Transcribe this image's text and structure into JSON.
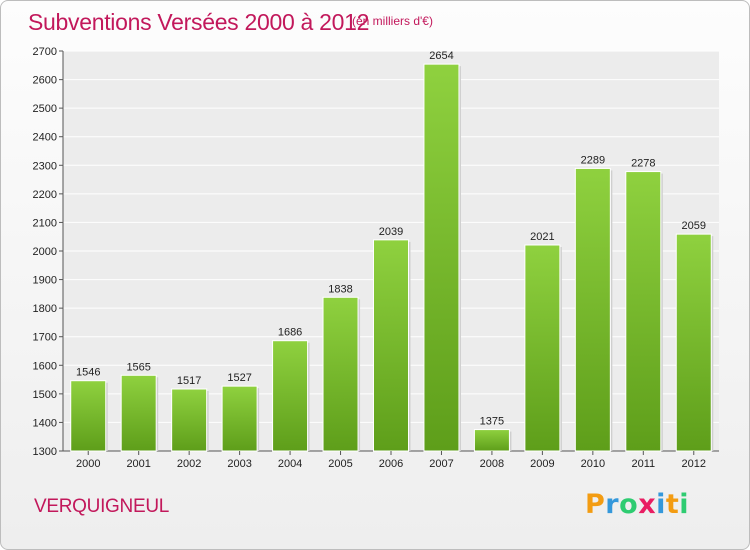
{
  "header": {
    "title": "Subventions Versées 2000 à 2012",
    "unit": "(en milliers d'€)"
  },
  "footer": {
    "commune": "VERQUIGNEUL",
    "logo_letters": [
      {
        "char": "P",
        "color": "#f39c12"
      },
      {
        "char": "r",
        "color": "#3498db"
      },
      {
        "char": "o",
        "color": "#2ecc71"
      },
      {
        "char": "x",
        "color": "#e91e63"
      },
      {
        "char": "i",
        "color": "#3498db"
      },
      {
        "char": "t",
        "color": "#f39c12"
      },
      {
        "char": "i",
        "color": "#2ecc71"
      }
    ]
  },
  "chart_data": {
    "type": "bar",
    "title": "Subventions Versées 2000 à 2012",
    "subtitle": "(en milliers d'€)",
    "xlabel": "",
    "ylabel": "",
    "categories": [
      "2000",
      "2001",
      "2002",
      "2003",
      "2004",
      "2005",
      "2006",
      "2007",
      "2008",
      "2009",
      "2010",
      "2011",
      "2012"
    ],
    "values": [
      1546,
      1565,
      1517,
      1527,
      1686,
      1838,
      2039,
      2654,
      1375,
      2021,
      2289,
      2278,
      2059
    ],
    "ylim": [
      1300,
      2700
    ],
    "yticks": [
      1300,
      1400,
      1500,
      1600,
      1700,
      1800,
      1900,
      2000,
      2100,
      2200,
      2300,
      2400,
      2500,
      2600,
      2700
    ],
    "grid": true,
    "bar_color": "#7cbf2e",
    "value_labels": true
  }
}
